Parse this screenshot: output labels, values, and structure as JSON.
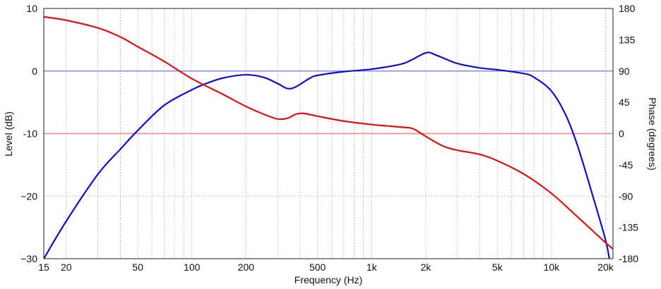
{
  "chart_data": {
    "type": "line",
    "xlabel": "Frequency (Hz)",
    "ylabel_left": "Level (dB)",
    "ylabel_right": "Phase (degrees)",
    "x_scale": "log",
    "xlim": [
      15,
      22000
    ],
    "ylim_left": [
      -30,
      10
    ],
    "ylim_right": [
      -180,
      180
    ],
    "grid": true,
    "x_ticks": [
      {
        "value": 15,
        "label": "15"
      },
      {
        "value": 20,
        "label": "20"
      },
      {
        "value": 50,
        "label": "50"
      },
      {
        "value": 100,
        "label": "100"
      },
      {
        "value": 200,
        "label": "200"
      },
      {
        "value": 500,
        "label": "500"
      },
      {
        "value": 1000,
        "label": "1k"
      },
      {
        "value": 2000,
        "label": "2k"
      },
      {
        "value": 5000,
        "label": "5k"
      },
      {
        "value": 10000,
        "label": "10k"
      },
      {
        "value": 20000,
        "label": "20k"
      }
    ],
    "y_ticks_left": [
      {
        "value": 10,
        "label": "10"
      },
      {
        "value": 0,
        "label": "0"
      },
      {
        "value": -10,
        "label": "-10"
      },
      {
        "value": -20,
        "label": "−20"
      },
      {
        "value": -30,
        "label": "−30"
      }
    ],
    "y_ticks_right": [
      {
        "value": 180,
        "label": "180"
      },
      {
        "value": 135,
        "label": "135"
      },
      {
        "value": 90,
        "label": "90"
      },
      {
        "value": 45,
        "label": "45"
      },
      {
        "value": 0,
        "label": "0"
      },
      {
        "value": -45,
        "label": "-45"
      },
      {
        "value": -90,
        "label": "-90"
      },
      {
        "value": -135,
        "label": "-135"
      },
      {
        "value": -180,
        "label": "-180"
      }
    ],
    "reference_lines": [
      {
        "axis": "left",
        "value": 0,
        "color": "#8888ee"
      },
      {
        "axis": "left",
        "value": -10,
        "color": "#ff8080"
      }
    ],
    "series": [
      {
        "axis": "left",
        "color": "#1010cc",
        "points": [
          [
            15,
            -30.0
          ],
          [
            20,
            -24.0
          ],
          [
            30,
            -16.5
          ],
          [
            40,
            -12.5
          ],
          [
            50,
            -9.5
          ],
          [
            70,
            -5.5
          ],
          [
            100,
            -3.0
          ],
          [
            120,
            -2.0
          ],
          [
            150,
            -1.1
          ],
          [
            200,
            -0.6
          ],
          [
            250,
            -1.0
          ],
          [
            300,
            -2.0
          ],
          [
            340,
            -2.8
          ],
          [
            380,
            -2.5
          ],
          [
            450,
            -1.2
          ],
          [
            500,
            -0.7
          ],
          [
            700,
            -0.1
          ],
          [
            1000,
            0.3
          ],
          [
            1500,
            1.2
          ],
          [
            2000,
            2.9
          ],
          [
            2300,
            2.5
          ],
          [
            3000,
            1.2
          ],
          [
            4000,
            0.5
          ],
          [
            5000,
            0.2
          ],
          [
            7000,
            -0.4
          ],
          [
            8000,
            -1.0
          ],
          [
            10000,
            -3.2
          ],
          [
            12000,
            -7.0
          ],
          [
            14000,
            -12.0
          ],
          [
            17000,
            -20.0
          ],
          [
            20000,
            -27.0
          ],
          [
            21000,
            -30.0
          ]
        ]
      },
      {
        "axis": "right",
        "color": "#dd1111",
        "points": [
          [
            15,
            168
          ],
          [
            20,
            163
          ],
          [
            30,
            152
          ],
          [
            40,
            139
          ],
          [
            50,
            125
          ],
          [
            70,
            104
          ],
          [
            100,
            79
          ],
          [
            150,
            56
          ],
          [
            200,
            39
          ],
          [
            250,
            28
          ],
          [
            300,
            21
          ],
          [
            340,
            22
          ],
          [
            380,
            28
          ],
          [
            420,
            29
          ],
          [
            500,
            25
          ],
          [
            700,
            18
          ],
          [
            1000,
            13
          ],
          [
            1500,
            9
          ],
          [
            1700,
            7
          ],
          [
            2000,
            -4
          ],
          [
            2500,
            -18
          ],
          [
            3000,
            -24
          ],
          [
            4000,
            -30
          ],
          [
            5000,
            -39
          ],
          [
            7000,
            -58
          ],
          [
            10000,
            -86
          ],
          [
            14000,
            -120
          ],
          [
            18000,
            -146
          ],
          [
            20000,
            -157
          ],
          [
            22000,
            -166
          ]
        ]
      }
    ]
  }
}
